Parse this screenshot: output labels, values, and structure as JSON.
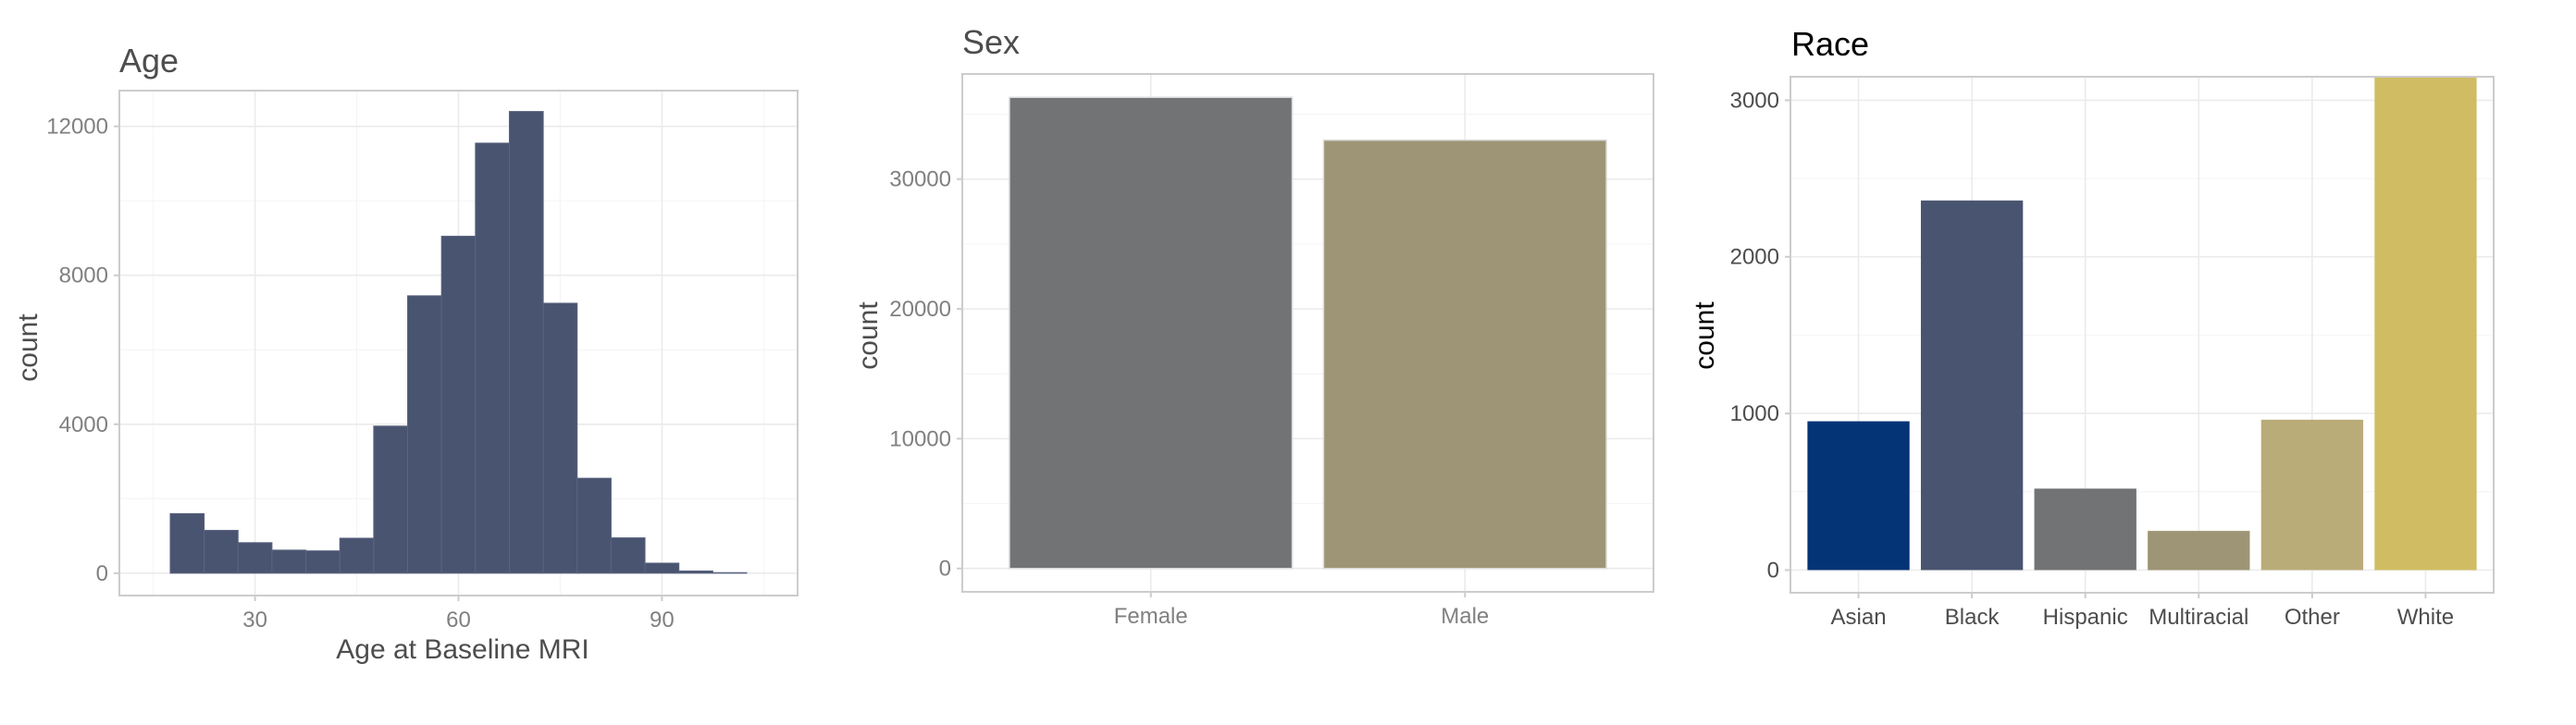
{
  "colors": {
    "background": "#ffffff",
    "grid": "#ebebeb",
    "border": "#cccccc",
    "bar_navy": "#495470",
    "bar_gray": "#727374",
    "bar_khaki": "#9d9575",
    "bar_blue": "#043476",
    "bar_tan": "#baac78",
    "bar_gold": "#d0bd63"
  },
  "chart_data": [
    {
      "type": "bar",
      "subtype": "histogram",
      "title": "Age",
      "xlabel": "Age at Baseline MRI",
      "ylabel": "count",
      "xlim": [
        10,
        110
      ],
      "ylim": [
        -600,
        12960
      ],
      "xticks": [
        30,
        60,
        90
      ],
      "yticks": [
        0,
        4000,
        8000,
        12000
      ],
      "bin_width": 5,
      "bins": [
        {
          "x0": 17.5,
          "x1": 22.5,
          "count": 1600
        },
        {
          "x0": 22.5,
          "x1": 27.5,
          "count": 1150
        },
        {
          "x0": 27.5,
          "x1": 32.5,
          "count": 820
        },
        {
          "x0": 32.5,
          "x1": 37.5,
          "count": 620
        },
        {
          "x0": 37.5,
          "x1": 42.5,
          "count": 600
        },
        {
          "x0": 42.5,
          "x1": 47.5,
          "count": 940
        },
        {
          "x0": 47.5,
          "x1": 52.5,
          "count": 3950
        },
        {
          "x0": 52.5,
          "x1": 57.5,
          "count": 7450
        },
        {
          "x0": 57.5,
          "x1": 62.5,
          "count": 9050
        },
        {
          "x0": 62.5,
          "x1": 67.5,
          "count": 11550
        },
        {
          "x0": 67.5,
          "x1": 72.5,
          "count": 12400
        },
        {
          "x0": 72.5,
          "x1": 77.5,
          "count": 7250
        },
        {
          "x0": 77.5,
          "x1": 82.5,
          "count": 2550
        },
        {
          "x0": 82.5,
          "x1": 87.5,
          "count": 950
        },
        {
          "x0": 87.5,
          "x1": 92.5,
          "count": 270
        },
        {
          "x0": 92.5,
          "x1": 97.5,
          "count": 60
        },
        {
          "x0": 97.5,
          "x1": 102.5,
          "count": 15
        }
      ],
      "grid": true,
      "color": "#495470"
    },
    {
      "type": "bar",
      "title": "Sex",
      "xlabel": "",
      "ylabel": "count",
      "categories": [
        "Female",
        "Male"
      ],
      "values": [
        36300,
        33000
      ],
      "ylim": [
        -1800,
        38100
      ],
      "yticks": [
        0,
        10000,
        20000,
        30000
      ],
      "colors": [
        "#727374",
        "#9d9575"
      ],
      "grid": true
    },
    {
      "type": "bar",
      "title": "Race",
      "xlabel": "",
      "ylabel": "count",
      "categories": [
        "Asian",
        "Black",
        "Hispanic",
        "Multiracial",
        "Other",
        "White"
      ],
      "values": [
        950,
        2360,
        520,
        250,
        960,
        3150
      ],
      "ylim": [
        -145,
        3150
      ],
      "yticks": [
        0,
        1000,
        2000,
        3000
      ],
      "colors": [
        "#043476",
        "#495470",
        "#727374",
        "#9d9575",
        "#baac78",
        "#d0bd63"
      ],
      "grid": true
    }
  ]
}
